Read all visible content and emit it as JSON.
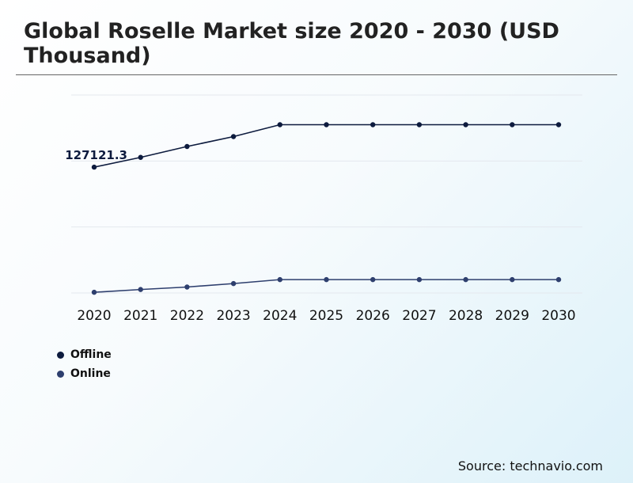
{
  "title": "Global Roselle Market size 2020 - 2030 (USD Thousand)",
  "source": "Source: technavio.com",
  "chart_data": {
    "type": "line",
    "title": "Global Roselle Market size 2020 - 2030 (USD Thousand)",
    "x": [
      "2020",
      "2021",
      "2022",
      "2023",
      "2024",
      "2025",
      "2026",
      "2027",
      "2028",
      "2029",
      "2030"
    ],
    "ylim": [
      0,
      200000
    ],
    "grid": true,
    "legend_position": "bottom-left",
    "series": [
      {
        "name": "Offline",
        "color": "#0d1b3e",
        "values": [
          127121.3,
          137000,
          148000,
          158000,
          170000,
          170000,
          170000,
          170000,
          170000,
          170000,
          170000
        ]
      },
      {
        "name": "Online",
        "color": "#2e3f6e",
        "values": [
          700,
          3500,
          6000,
          9500,
          13500,
          13500,
          13500,
          13500,
          13500,
          13500,
          13500
        ]
      }
    ],
    "annotations": [
      {
        "series": 0,
        "index": 0,
        "text": "127121.3"
      }
    ]
  }
}
